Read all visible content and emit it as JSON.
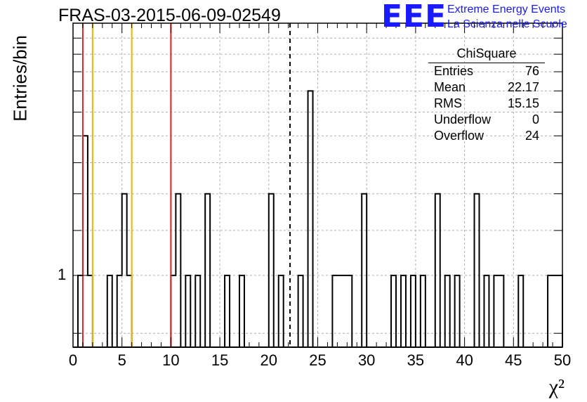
{
  "header": {
    "title": "FRAS-03-2015-06-09-02549",
    "logo_mark": "EEE",
    "logo_line1": "Extreme Energy Events",
    "logo_line2": "La Scienza nelle Scuole"
  },
  "stats_box": {
    "title": "ChiSquare",
    "rows": [
      {
        "label": "Entries",
        "value": "76"
      },
      {
        "label": "Mean",
        "value": "22.17"
      },
      {
        "label": "RMS",
        "value": "15.15"
      },
      {
        "label": "Underflow",
        "value": "0"
      },
      {
        "label": "Overflow",
        "value": "24"
      }
    ]
  },
  "chart_data": {
    "type": "bar",
    "histogram": "step",
    "xlabel": "χ²",
    "ylabel": "Entries/bin",
    "xlim": [
      0,
      50
    ],
    "ylim": [
      0.7,
      3.5
    ],
    "yscale": "log",
    "bin_width": 0.5,
    "x_ticks": [
      0,
      5,
      10,
      15,
      20,
      25,
      30,
      35,
      40,
      45,
      50
    ],
    "y_tick_labels": [
      {
        "value": 1,
        "label": "1"
      }
    ],
    "grid": true,
    "bins": [
      {
        "x": 0.5,
        "y": 1
      },
      {
        "x": 1.0,
        "y": 2
      },
      {
        "x": 1.5,
        "y": 1
      },
      {
        "x": 3.5,
        "y": 1
      },
      {
        "x": 4.5,
        "y": 1
      },
      {
        "x": 5.0,
        "y": 1.5
      },
      {
        "x": 5.5,
        "y": 1
      },
      {
        "x": 10.0,
        "y": 1
      },
      {
        "x": 10.5,
        "y": 1.5
      },
      {
        "x": 11.5,
        "y": 1
      },
      {
        "x": 12.5,
        "y": 1
      },
      {
        "x": 13.5,
        "y": 1.5
      },
      {
        "x": 15.5,
        "y": 1
      },
      {
        "x": 17.0,
        "y": 1
      },
      {
        "x": 20.0,
        "y": 1.5
      },
      {
        "x": 21.0,
        "y": 1
      },
      {
        "x": 23.0,
        "y": 1
      },
      {
        "x": 24.0,
        "y": 2.5
      },
      {
        "x": 26.5,
        "y": 1
      },
      {
        "x": 27.0,
        "y": 1
      },
      {
        "x": 27.5,
        "y": 1
      },
      {
        "x": 28.0,
        "y": 1
      },
      {
        "x": 29.5,
        "y": 1.5
      },
      {
        "x": 32.5,
        "y": 1
      },
      {
        "x": 33.5,
        "y": 1
      },
      {
        "x": 34.5,
        "y": 1
      },
      {
        "x": 35.5,
        "y": 1
      },
      {
        "x": 37.0,
        "y": 1.5
      },
      {
        "x": 38.0,
        "y": 1
      },
      {
        "x": 39.0,
        "y": 1
      },
      {
        "x": 41.0,
        "y": 1.5
      },
      {
        "x": 42.0,
        "y": 1
      },
      {
        "x": 43.0,
        "y": 1
      },
      {
        "x": 43.5,
        "y": 1
      },
      {
        "x": 45.5,
        "y": 1
      },
      {
        "x": 48.5,
        "y": 1
      },
      {
        "x": 49.0,
        "y": 1
      },
      {
        "x": 49.5,
        "y": 1
      }
    ],
    "vertical_lines": [
      {
        "x": 1.0,
        "color": "#e02020",
        "style": "solid"
      },
      {
        "x": 2.0,
        "color": "#f0b400",
        "style": "solid"
      },
      {
        "x": 6.0,
        "color": "#f0b400",
        "style": "solid"
      },
      {
        "x": 10.0,
        "color": "#e02020",
        "style": "solid"
      },
      {
        "x": 22.17,
        "color": "#000000",
        "style": "dashed"
      }
    ],
    "colors": {
      "line": "#000000",
      "grid": "#b0b0b0"
    }
  }
}
